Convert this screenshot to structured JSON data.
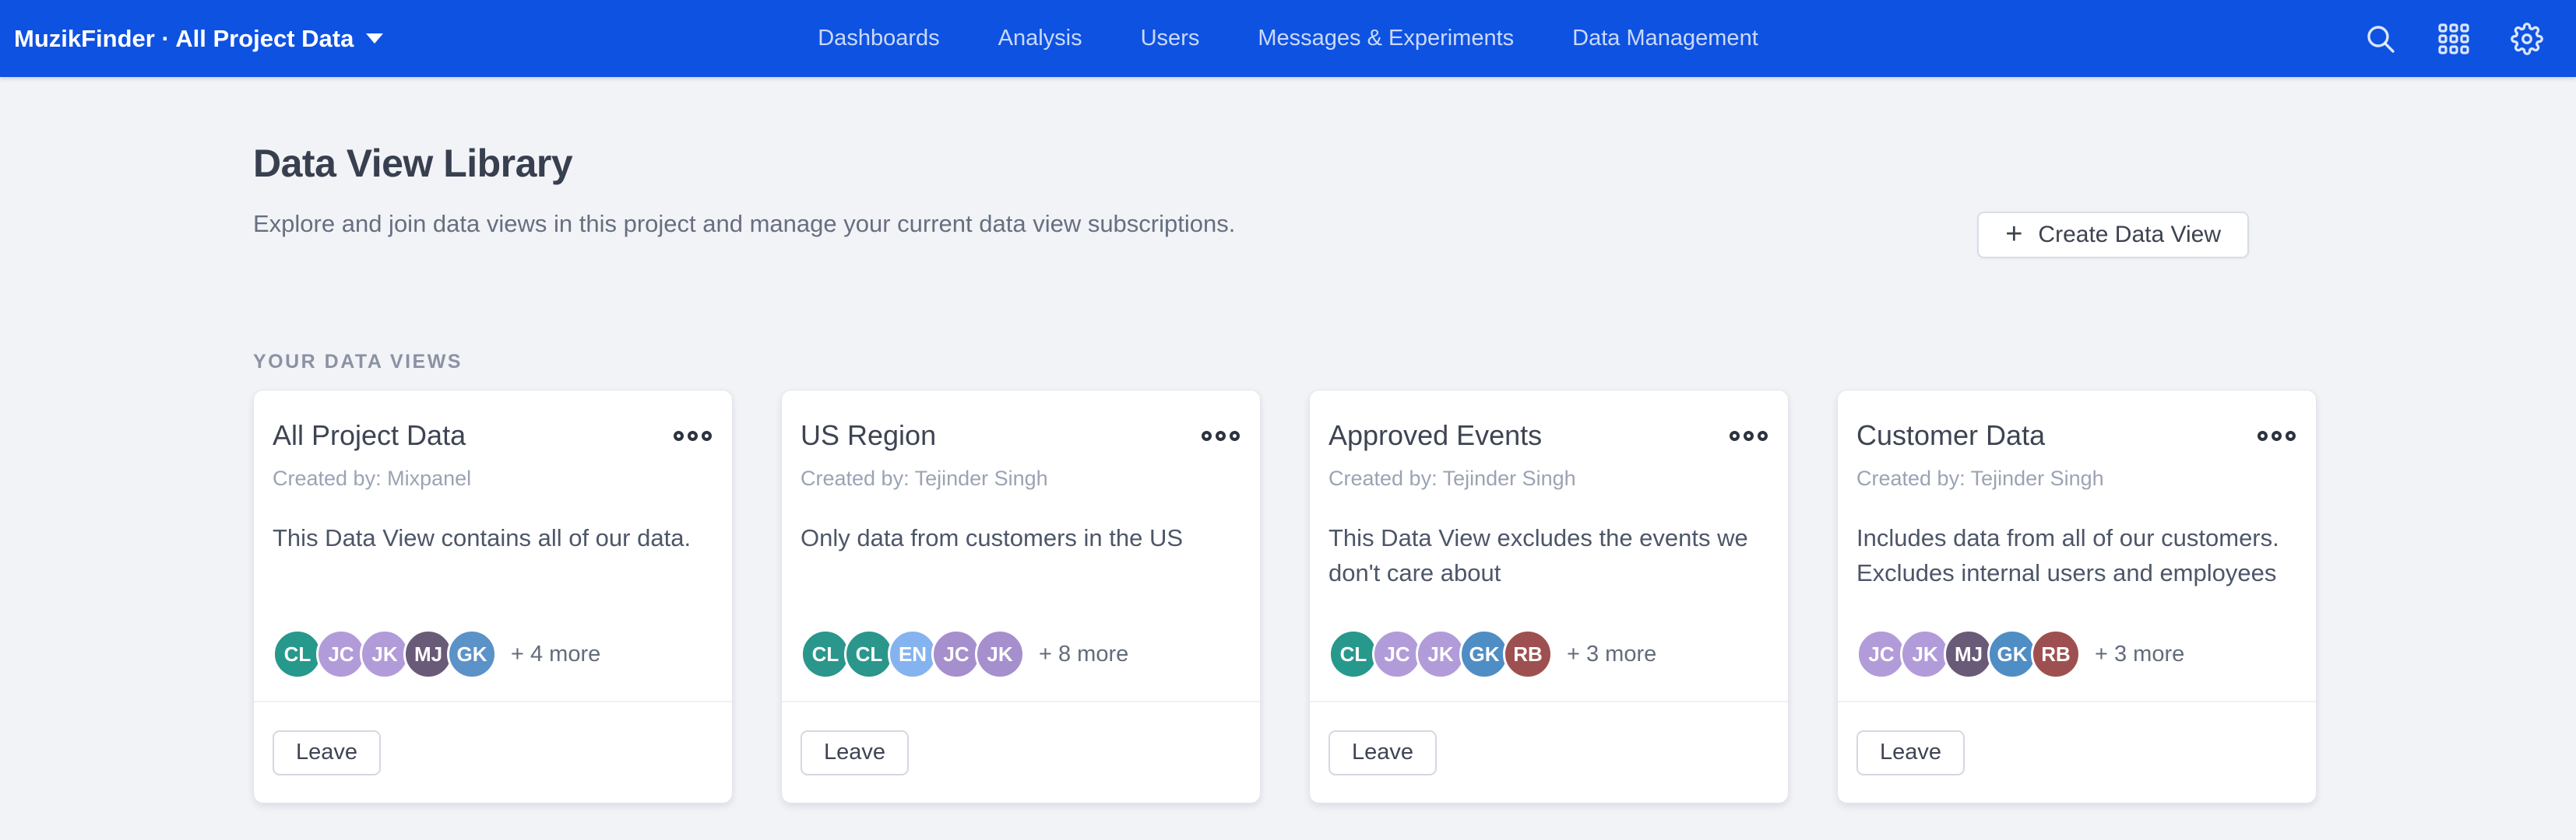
{
  "header": {
    "brand": "MuzikFinder · All Project Data",
    "brand_caret_icon": "chevron-down-icon",
    "nav": [
      "Dashboards",
      "Analysis",
      "Users",
      "Messages & Experiments",
      "Data Management"
    ],
    "icons": [
      "search-icon",
      "apps-grid-icon",
      "settings-icon"
    ]
  },
  "page": {
    "title": "Data View Library",
    "subtitle": "Explore and join data views in this project and manage your current data view subscriptions.",
    "create_button": "Create Data View",
    "plus_icon": "+",
    "section_label": "YOUR DATA VIEWS"
  },
  "cards": [
    {
      "title": "All Project Data",
      "created_by": "Created by: Mixpanel",
      "description": "This Data View contains all of our data.",
      "avatars": [
        {
          "initials": "CL",
          "color": "#27988c"
        },
        {
          "initials": "JC",
          "color": "#b19cd9"
        },
        {
          "initials": "JK",
          "color": "#b19cd9"
        },
        {
          "initials": "MJ",
          "color": "#695a77"
        },
        {
          "initials": "GK",
          "color": "#5b92c8"
        }
      ],
      "more": "+ 4 more",
      "leave_label": "Leave"
    },
    {
      "title": "US Region",
      "created_by": "Created by: Tejinder Singh",
      "description": "Only data from customers in the US",
      "avatars": [
        {
          "initials": "CL",
          "color": "#2b968b"
        },
        {
          "initials": "CL",
          "color": "#2b968b"
        },
        {
          "initials": "EN",
          "color": "#85b3ef"
        },
        {
          "initials": "JC",
          "color": "#a58fcd"
        },
        {
          "initials": "JK",
          "color": "#a58fcd"
        }
      ],
      "more": "+ 8 more",
      "leave_label": "Leave"
    },
    {
      "title": "Approved Events",
      "created_by": "Created by: Tejinder Singh",
      "description": "This Data View excludes the events we don't care about",
      "avatars": [
        {
          "initials": "CL",
          "color": "#27988c"
        },
        {
          "initials": "JC",
          "color": "#b19cd9"
        },
        {
          "initials": "JK",
          "color": "#b19cd9"
        },
        {
          "initials": "GK",
          "color": "#4f8dc5"
        },
        {
          "initials": "RB",
          "color": "#9e5050"
        }
      ],
      "more": "+ 3 more",
      "leave_label": "Leave"
    },
    {
      "title": "Customer Data",
      "created_by": "Created by: Tejinder Singh",
      "description": "Includes data from all of our customers. Excludes internal users and employees",
      "avatars": [
        {
          "initials": "JC",
          "color": "#b19cd9"
        },
        {
          "initials": "JK",
          "color": "#b19cd9"
        },
        {
          "initials": "MJ",
          "color": "#695a77"
        },
        {
          "initials": "GK",
          "color": "#4f8dc5"
        },
        {
          "initials": "RB",
          "color": "#9e5050"
        }
      ],
      "more": "+ 3 more",
      "leave_label": "Leave"
    }
  ],
  "colors": {
    "header_blue": "#0e52e2",
    "page_background": "#f2f3f7",
    "card_background": "#ffffff",
    "heading_text": "#383f4e",
    "body_text": "#4d5669",
    "muted_text": "#9ba3b4"
  }
}
